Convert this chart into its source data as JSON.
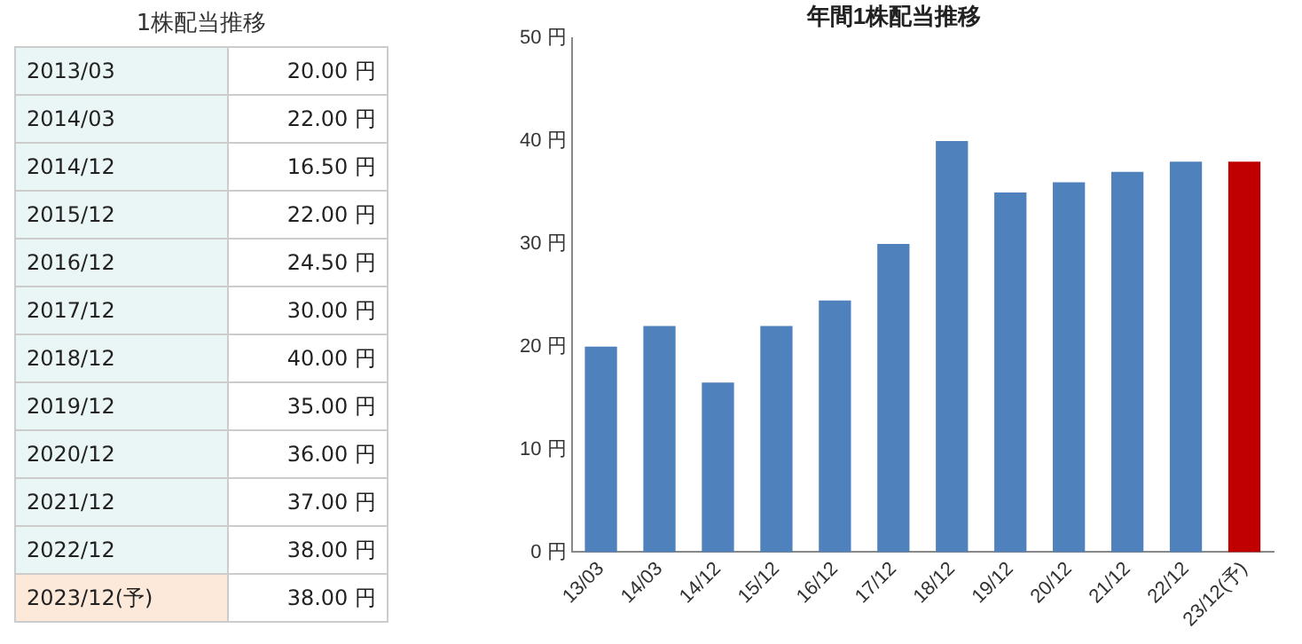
{
  "chart_data": [
    {
      "type": "other",
      "title": "1株配当推移",
      "categories": [
        "2013/03",
        "2014/03",
        "2014/12",
        "2015/12",
        "2016/12",
        "2017/12",
        "2018/12",
        "2019/12",
        "2020/12",
        "2021/12",
        "2022/12",
        "2023/12(予)"
      ],
      "value_labels": [
        "20.00 円",
        "22.00 円",
        "16.50 円",
        "22.00 円",
        "24.50 円",
        "30.00 円",
        "40.00 円",
        "35.00 円",
        "36.00 円",
        "37.00 円",
        "38.00 円",
        "38.00 円"
      ]
    },
    {
      "type": "bar",
      "title": "年間1株配当推移",
      "categories": [
        "13/03",
        "14/03",
        "14/12",
        "15/12",
        "16/12",
        "17/12",
        "18/12",
        "19/12",
        "20/12",
        "21/12",
        "22/12",
        "23/12(予)"
      ],
      "values": [
        20,
        22,
        16.5,
        22,
        24.5,
        30,
        40,
        35,
        36,
        37,
        38,
        38
      ],
      "colors": [
        "#4f81bd",
        "#4f81bd",
        "#4f81bd",
        "#4f81bd",
        "#4f81bd",
        "#4f81bd",
        "#4f81bd",
        "#4f81bd",
        "#4f81bd",
        "#4f81bd",
        "#4f81bd",
        "#c00000"
      ],
      "ylim": [
        0,
        50
      ],
      "yticks": [
        {
          "value": 0,
          "label": "0 円"
        },
        {
          "value": 10,
          "label": "10 円"
        },
        {
          "value": 20,
          "label": "20 円"
        },
        {
          "value": 30,
          "label": "30 円"
        },
        {
          "value": 40,
          "label": "40 円"
        },
        {
          "value": 50,
          "label": "50 円"
        }
      ],
      "grid": false,
      "legend": false
    }
  ]
}
